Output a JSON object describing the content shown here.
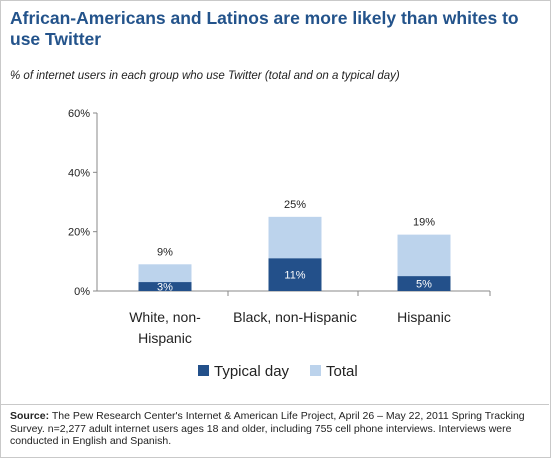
{
  "title": "African-Americans and Latinos are more likely than whites to use Twitter",
  "subtitle": "% of internet users in each group who use Twitter (total and on a typical day)",
  "source_label": "Source:",
  "source_text": "The Pew Research Center's Internet & American Life Project, April 26 – May 22, 2011 Spring Tracking Survey. n=2,277 adult internet users ages 18 and older, including 755 cell phone interviews. Interviews were conducted in English and Spanish.",
  "colors": {
    "typical": "#23508a",
    "total": "#bcd3ec",
    "title": "#23538b"
  },
  "chart_data": {
    "type": "bar",
    "stacked": true,
    "categories": [
      [
        "White, non-",
        "Hispanic"
      ],
      [
        "Black, non-Hispanic"
      ],
      [
        "Hispanic"
      ]
    ],
    "series": [
      {
        "name": "Typical day",
        "values": [
          3,
          11,
          5
        ],
        "labels": [
          "3%",
          "11%",
          "5%"
        ]
      },
      {
        "name": "Total",
        "values": [
          9,
          25,
          19
        ],
        "labels": [
          "9%",
          "25%",
          "19%"
        ]
      }
    ],
    "ylim": [
      0,
      60
    ],
    "yticks": [
      0,
      20,
      40,
      60
    ],
    "ytick_labels": [
      "0%",
      "20%",
      "40%",
      "60%"
    ],
    "grid": false,
    "legend": "bottom-center"
  }
}
